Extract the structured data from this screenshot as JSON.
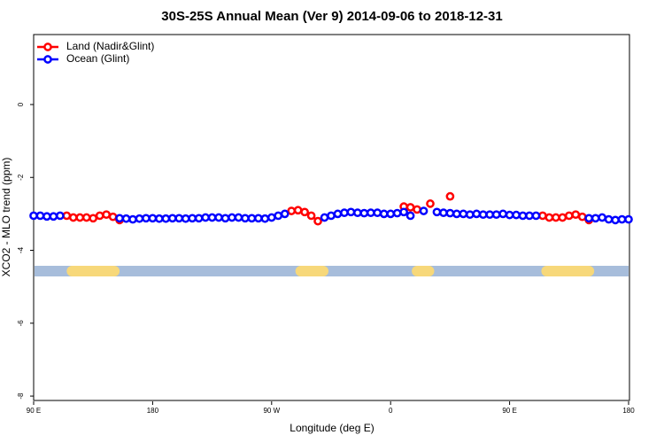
{
  "chart_data": {
    "type": "line",
    "title": "30S-25S Annual Mean (Ver 9)   2014-09-06 to 2018-12-31",
    "x_label": "Longitude (deg E)",
    "y_label": "XCO2 - MLO trend (ppm)",
    "x": [
      90,
      95,
      100,
      105,
      110,
      115,
      120,
      125,
      130,
      135,
      140,
      145,
      150,
      155,
      160,
      165,
      170,
      175,
      180,
      185,
      190,
      195,
      200,
      205,
      210,
      215,
      220,
      225,
      230,
      235,
      240,
      245,
      250,
      255,
      260,
      265,
      270,
      275,
      280,
      285,
      290,
      295,
      300,
      305,
      310,
      315,
      320,
      325,
      330,
      335,
      340,
      345,
      350,
      355,
      360,
      365,
      370,
      375,
      380,
      385,
      390,
      395,
      400,
      405,
      410,
      415,
      420,
      425,
      430,
      435,
      440,
      445,
      450,
      455,
      460,
      465,
      470,
      475,
      480,
      485,
      490,
      495,
      500,
      505,
      510,
      515,
      520,
      525,
      530,
      535,
      540
    ],
    "series": [
      {
        "name": "Land (Nadir&Glint)",
        "color": "#ff0000",
        "values": [
          null,
          null,
          null,
          null,
          null,
          -3.05,
          -3.1,
          -3.1,
          -3.1,
          -3.12,
          -3.05,
          -3.02,
          -3.08,
          -3.17,
          null,
          null,
          null,
          null,
          null,
          null,
          null,
          null,
          null,
          null,
          null,
          null,
          null,
          null,
          null,
          null,
          null,
          null,
          null,
          null,
          null,
          null,
          null,
          null,
          null,
          -2.92,
          -2.9,
          -2.95,
          -3.05,
          -3.2,
          null,
          null,
          null,
          null,
          null,
          null,
          null,
          null,
          null,
          null,
          null,
          null,
          -2.8,
          -2.82,
          -2.88,
          null,
          -2.72,
          null,
          null,
          -2.52,
          null,
          null,
          null,
          null,
          null,
          null,
          null,
          null,
          null,
          null,
          null,
          null,
          null,
          -3.05,
          -3.1,
          -3.1,
          -3.1,
          -3.05,
          -3.02,
          -3.08,
          -3.17,
          null,
          null,
          null,
          null,
          null,
          null
        ]
      },
      {
        "name": "Ocean (Glint)",
        "color": "#0000ff",
        "values": [
          -3.05,
          -3.05,
          -3.07,
          -3.07,
          -3.05,
          null,
          null,
          null,
          null,
          null,
          null,
          null,
          null,
          -3.12,
          -3.13,
          -3.15,
          -3.13,
          -3.12,
          -3.12,
          -3.13,
          -3.13,
          -3.12,
          -3.12,
          -3.13,
          -3.12,
          -3.12,
          -3.1,
          -3.1,
          -3.1,
          -3.12,
          -3.1,
          -3.1,
          -3.12,
          -3.12,
          -3.12,
          -3.13,
          -3.1,
          -3.05,
          -3.0,
          null,
          null,
          null,
          null,
          null,
          -3.1,
          -3.05,
          -3.0,
          -2.97,
          -2.95,
          -2.97,
          -2.98,
          -2.97,
          -2.97,
          -3.0,
          -3.0,
          -2.98,
          -2.95,
          -3.05,
          null,
          -2.92,
          null,
          -2.95,
          -2.97,
          -2.98,
          -3.0,
          -3.0,
          -3.02,
          -3.0,
          -3.02,
          -3.02,
          -3.02,
          -3.0,
          -3.03,
          -3.03,
          -3.05,
          -3.05,
          -3.05,
          null,
          null,
          null,
          null,
          null,
          null,
          null,
          -3.12,
          -3.12,
          -3.1,
          -3.15,
          -3.17,
          -3.15,
          -3.15
        ]
      }
    ],
    "land_mask": {
      "y": -4.57,
      "land": [
        [
          115,
          155
        ],
        [
          288,
          313
        ],
        [
          376,
          393
        ],
        [
          474,
          514
        ]
      ]
    },
    "xlim": [
      90,
      540
    ],
    "ylim": [
      -8.12,
      1.92
    ],
    "xticks": [
      {
        "value": 90,
        "label": "90 E"
      },
      180,
      {
        "value": 270,
        "label": "90 W"
      },
      {
        "value": 360,
        "label": "0"
      },
      {
        "value": 450,
        "label": "90 E"
      },
      {
        "value": 540,
        "label": "180"
      }
    ],
    "yticks": [
      -8,
      -6,
      -4,
      -2,
      0
    ],
    "legend": "top-left"
  }
}
